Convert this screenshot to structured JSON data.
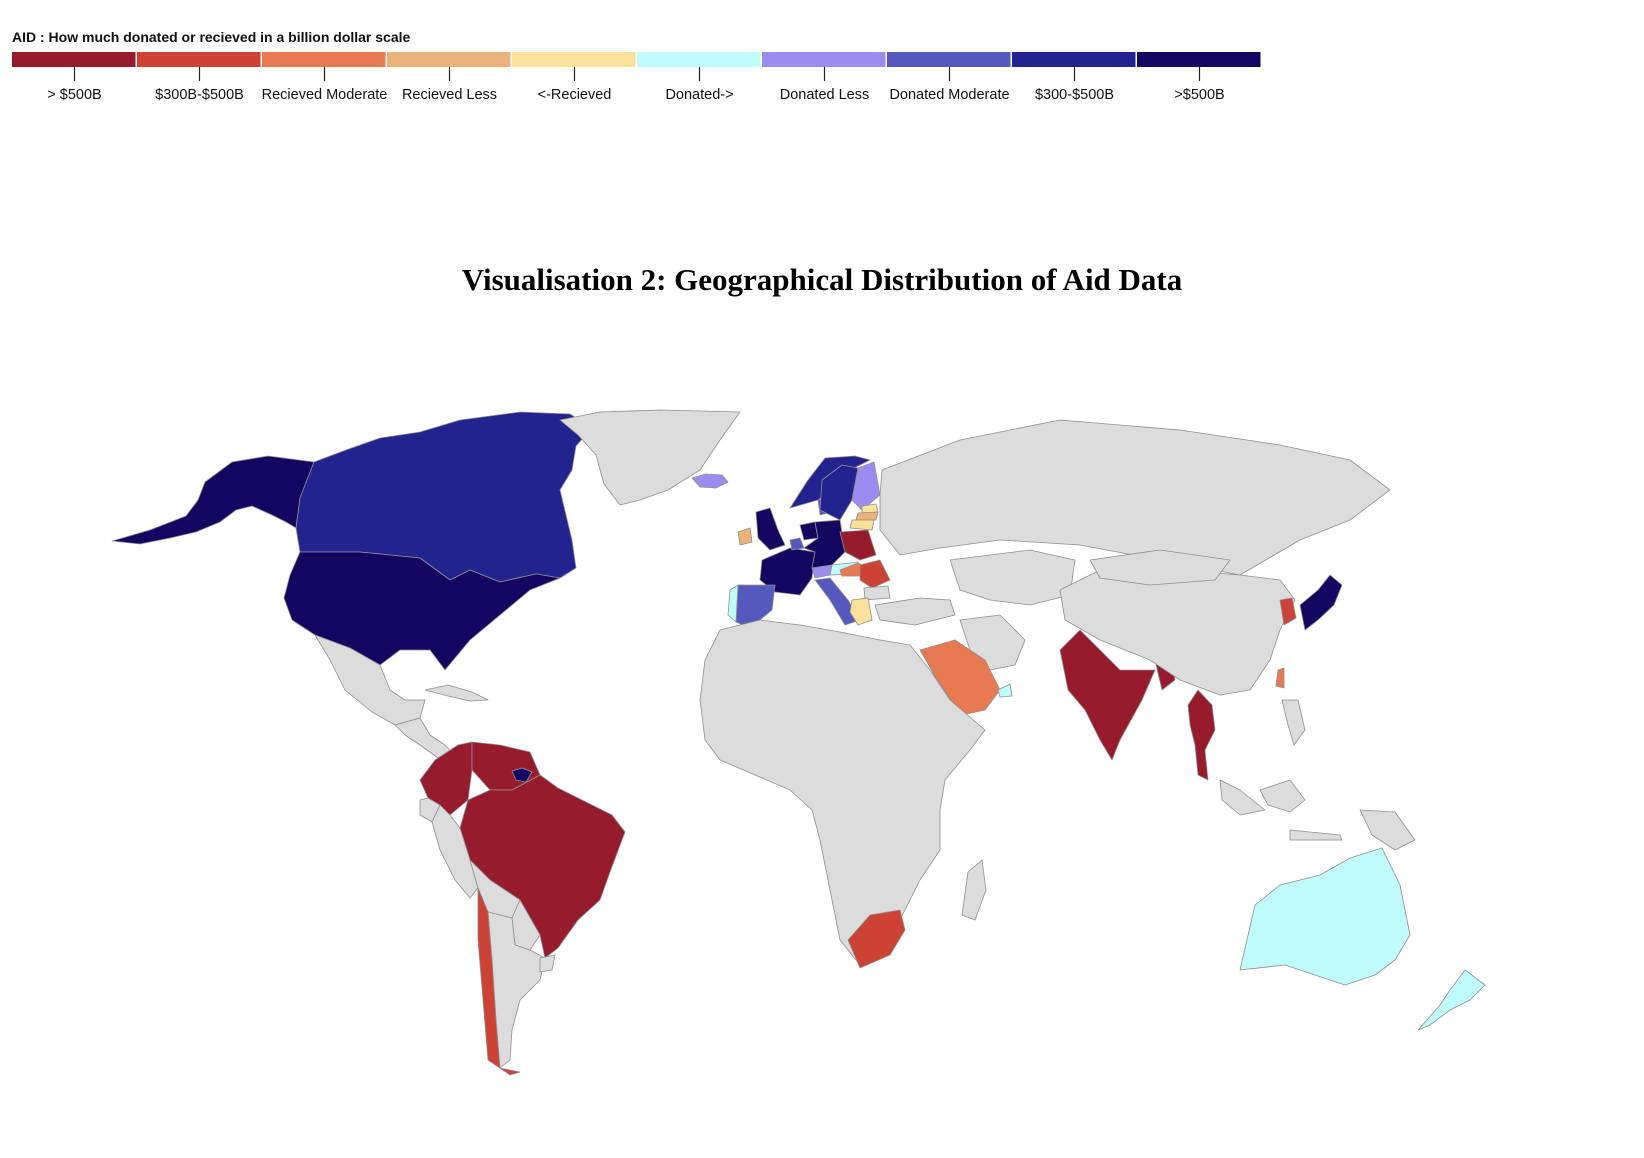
{
  "legend": {
    "title": "AID : How much donated or recieved in a billion dollar scale",
    "bins": [
      {
        "label": "> $500B",
        "color": "#961c2d"
      },
      {
        "label": "$300B-$500B",
        "color": "#cc4234"
      },
      {
        "label": "Recieved Moderate",
        "color": "#e87a52"
      },
      {
        "label": "Recieved Less",
        "color": "#ebb37a"
      },
      {
        "label": "<-Recieved",
        "color": "#fbe29c"
      },
      {
        "label": "Donated->",
        "color": "#c0fcfb"
      },
      {
        "label": "Donated Less",
        "color": "#9c8cf0"
      },
      {
        "label": "Donated Moderate",
        "color": "#5558bc"
      },
      {
        "label": "$300-$500B",
        "color": "#22238e"
      },
      {
        "label": ">$500B",
        "color": "#130660"
      }
    ]
  },
  "map": {
    "title": "Visualisation 2: Geographical Distribution of Aid Data",
    "no_data_color": "#dcdcdc",
    "countries": [
      {
        "name": "Alaska (United States)",
        "category": ">$500B"
      },
      {
        "name": "Canada",
        "category": "$300-$500B"
      },
      {
        "name": "United States",
        "category": ">$500B"
      },
      {
        "name": "Mexico",
        "category": null
      },
      {
        "name": "Central America",
        "category": null
      },
      {
        "name": "Cuba",
        "category": null
      },
      {
        "name": "Greenland",
        "category": null
      },
      {
        "name": "Iceland",
        "category": "Donated Less"
      },
      {
        "name": "Colombia",
        "category": "> $500B"
      },
      {
        "name": "Venezuela",
        "category": "> $500B"
      },
      {
        "name": "Brazil",
        "category": "> $500B"
      },
      {
        "name": "French Guiana",
        "category": ">$500B"
      },
      {
        "name": "Ecuador",
        "category": null
      },
      {
        "name": "Peru",
        "category": null
      },
      {
        "name": "Bolivia",
        "category": null
      },
      {
        "name": "Paraguay",
        "category": null
      },
      {
        "name": "Argentina",
        "category": null
      },
      {
        "name": "Chile",
        "category": "$300B-$500B"
      },
      {
        "name": "Uruguay",
        "category": null
      },
      {
        "name": "Ireland",
        "category": "Recieved Less"
      },
      {
        "name": "United Kingdom",
        "category": ">$500B"
      },
      {
        "name": "France",
        "category": ">$500B"
      },
      {
        "name": "Belgium",
        "category": "Donated Moderate"
      },
      {
        "name": "Netherlands",
        "category": ">$500B"
      },
      {
        "name": "Germany",
        "category": ">$500B"
      },
      {
        "name": "Switzerland",
        "category": "Donated Less"
      },
      {
        "name": "Austria",
        "category": "Donated->"
      },
      {
        "name": "Spain",
        "category": "Donated Moderate"
      },
      {
        "name": "Portugal",
        "category": "Donated->"
      },
      {
        "name": "Italy",
        "category": "Donated Moderate"
      },
      {
        "name": "Denmark",
        "category": "Donated Moderate"
      },
      {
        "name": "Norway",
        "category": "$300-$500B"
      },
      {
        "name": "Sweden",
        "category": "$300-$500B"
      },
      {
        "name": "Finland",
        "category": "Donated Less"
      },
      {
        "name": "Estonia",
        "category": "<-Recieved"
      },
      {
        "name": "Latvia",
        "category": "Recieved Less"
      },
      {
        "name": "Lithuania",
        "category": "<-Recieved"
      },
      {
        "name": "Poland",
        "category": "> $500B"
      },
      {
        "name": "Hungary",
        "category": "Recieved Moderate"
      },
      {
        "name": "Romania",
        "category": "$300B-$500B"
      },
      {
        "name": "Bulgaria",
        "category": null
      },
      {
        "name": "Greece",
        "category": "<-Recieved"
      },
      {
        "name": "Russia",
        "category": null
      },
      {
        "name": "Turkey",
        "category": null
      },
      {
        "name": "Kazakhstan",
        "category": null
      },
      {
        "name": "Iran",
        "category": null
      },
      {
        "name": "Saudi Arabia",
        "category": "Recieved Moderate"
      },
      {
        "name": "United Arab Emirates",
        "category": "Donated->"
      },
      {
        "name": "India",
        "category": "> $500B"
      },
      {
        "name": "Bangladesh",
        "category": "> $500B"
      },
      {
        "name": "Thailand",
        "category": "> $500B"
      },
      {
        "name": "China",
        "category": null
      },
      {
        "name": "Mongolia",
        "category": null
      },
      {
        "name": "South Korea",
        "category": "$300B-$500B"
      },
      {
        "name": "Japan",
        "category": ">$500B"
      },
      {
        "name": "Taiwan",
        "category": "Recieved Moderate"
      },
      {
        "name": "Africa",
        "category": null
      },
      {
        "name": "South Africa",
        "category": "$300B-$500B"
      },
      {
        "name": "Madagascar",
        "category": null
      },
      {
        "name": "Indonesia",
        "category": null
      },
      {
        "name": "Papua New Guinea",
        "category": null
      },
      {
        "name": "Philippines",
        "category": null
      },
      {
        "name": "Australia",
        "category": "Donated->"
      },
      {
        "name": "New Zealand",
        "category": "Donated->"
      }
    ]
  }
}
